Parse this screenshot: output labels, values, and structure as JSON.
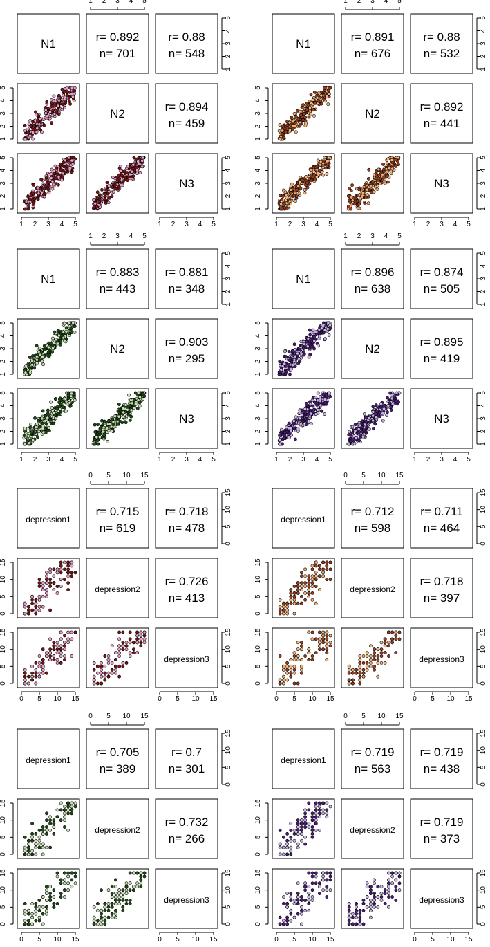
{
  "chart_data": [
    {
      "type": "scatter",
      "matrix": "pairs",
      "variables": [
        "N1",
        "N2",
        "N3"
      ],
      "axis_range": [
        1,
        5
      ],
      "ticks": [
        "1",
        "2",
        "3",
        "4",
        "5"
      ],
      "colors": {
        "fill_a": "#e8a0c8",
        "fill_b": "#7a1414"
      },
      "correlations": [
        {
          "pair": [
            "N1",
            "N2"
          ],
          "r": "r= 0.892",
          "n": "n= 701"
        },
        {
          "pair": [
            "N1",
            "N3"
          ],
          "r": "r= 0.88",
          "n": "n= 548"
        },
        {
          "pair": [
            "N2",
            "N3"
          ],
          "r": "r= 0.894",
          "n": "n= 459"
        }
      ]
    },
    {
      "type": "scatter",
      "matrix": "pairs",
      "variables": [
        "N1",
        "N2",
        "N3"
      ],
      "axis_range": [
        1,
        5
      ],
      "ticks": [
        "1",
        "2",
        "3",
        "4",
        "5"
      ],
      "colors": {
        "fill_a": "#f4b478",
        "fill_b": "#9a3c1e"
      },
      "correlations": [
        {
          "pair": [
            "N1",
            "N2"
          ],
          "r": "r= 0.891",
          "n": "n= 676"
        },
        {
          "pair": [
            "N1",
            "N3"
          ],
          "r": "r= 0.88",
          "n": "n= 532"
        },
        {
          "pair": [
            "N2",
            "N3"
          ],
          "r": "r= 0.892",
          "n": "n= 441"
        }
      ]
    },
    {
      "type": "scatter",
      "matrix": "pairs",
      "variables": [
        "N1",
        "N2",
        "N3"
      ],
      "axis_range": [
        1,
        5
      ],
      "ticks": [
        "1",
        "2",
        "3",
        "4",
        "5"
      ],
      "colors": {
        "fill_a": "#c8e0b4",
        "fill_b": "#1e4a14"
      },
      "correlations": [
        {
          "pair": [
            "N1",
            "N2"
          ],
          "r": "r= 0.883",
          "n": "n= 443"
        },
        {
          "pair": [
            "N1",
            "N3"
          ],
          "r": "r= 0.881",
          "n": "n= 348"
        },
        {
          "pair": [
            "N2",
            "N3"
          ],
          "r": "r= 0.903",
          "n": "n= 295"
        }
      ]
    },
    {
      "type": "scatter",
      "matrix": "pairs",
      "variables": [
        "N1",
        "N2",
        "N3"
      ],
      "axis_range": [
        1,
        5
      ],
      "ticks": [
        "1",
        "2",
        "3",
        "4",
        "5"
      ],
      "colors": {
        "fill_a": "#c8b4e8",
        "fill_b": "#4a1a78"
      },
      "correlations": [
        {
          "pair": [
            "N1",
            "N2"
          ],
          "r": "r= 0.896",
          "n": "n= 638"
        },
        {
          "pair": [
            "N1",
            "N3"
          ],
          "r": "r= 0.874",
          "n": "n= 505"
        },
        {
          "pair": [
            "N2",
            "N3"
          ],
          "r": "r= 0.895",
          "n": "n= 419"
        }
      ]
    },
    {
      "type": "scatter",
      "matrix": "pairs",
      "variables": [
        "depression1",
        "depression2",
        "depression3"
      ],
      "axis_range": [
        0,
        15
      ],
      "ticks": [
        "0",
        "5",
        "10",
        "15"
      ],
      "colors": {
        "fill_a": "#e8a0c8",
        "fill_b": "#7a1414"
      },
      "correlations": [
        {
          "pair": [
            "depression1",
            "depression2"
          ],
          "r": "r= 0.715",
          "n": "n= 619"
        },
        {
          "pair": [
            "depression1",
            "depression3"
          ],
          "r": "r= 0.718",
          "n": "n= 478"
        },
        {
          "pair": [
            "depression2",
            "depression3"
          ],
          "r": "r= 0.726",
          "n": "n= 413"
        }
      ]
    },
    {
      "type": "scatter",
      "matrix": "pairs",
      "variables": [
        "depression1",
        "depression2",
        "depression3"
      ],
      "axis_range": [
        0,
        15
      ],
      "ticks": [
        "0",
        "5",
        "10",
        "15"
      ],
      "colors": {
        "fill_a": "#f4b478",
        "fill_b": "#9a3c1e"
      },
      "correlations": [
        {
          "pair": [
            "depression1",
            "depression2"
          ],
          "r": "r= 0.712",
          "n": "n= 598"
        },
        {
          "pair": [
            "depression1",
            "depression3"
          ],
          "r": "r= 0.711",
          "n": "n= 464"
        },
        {
          "pair": [
            "depression2",
            "depression3"
          ],
          "r": "r= 0.718",
          "n": "n= 397"
        }
      ]
    },
    {
      "type": "scatter",
      "matrix": "pairs",
      "variables": [
        "depression1",
        "depression2",
        "depression3"
      ],
      "axis_range": [
        0,
        15
      ],
      "ticks": [
        "0",
        "5",
        "10",
        "15"
      ],
      "colors": {
        "fill_a": "#c8e0b4",
        "fill_b": "#1e4a14"
      },
      "correlations": [
        {
          "pair": [
            "depression1",
            "depression2"
          ],
          "r": "r= 0.705",
          "n": "n= 389"
        },
        {
          "pair": [
            "depression1",
            "depression3"
          ],
          "r": "r= 0.7",
          "n": "n= 301"
        },
        {
          "pair": [
            "depression2",
            "depression3"
          ],
          "r": "r= 0.732",
          "n": "n= 266"
        }
      ]
    },
    {
      "type": "scatter",
      "matrix": "pairs",
      "variables": [
        "depression1",
        "depression2",
        "depression3"
      ],
      "axis_range": [
        0,
        15
      ],
      "ticks": [
        "0",
        "5",
        "10",
        "15"
      ],
      "colors": {
        "fill_a": "#c8b4e8",
        "fill_b": "#4a1a78"
      },
      "correlations": [
        {
          "pair": [
            "depression1",
            "depression2"
          ],
          "r": "r= 0.719",
          "n": "n= 563"
        },
        {
          "pair": [
            "depression1",
            "depression3"
          ],
          "r": "r= 0.719",
          "n": "n= 438"
        },
        {
          "pair": [
            "depression2",
            "depression3"
          ],
          "r": "r= 0.719",
          "n": "n= 373"
        }
      ]
    }
  ]
}
